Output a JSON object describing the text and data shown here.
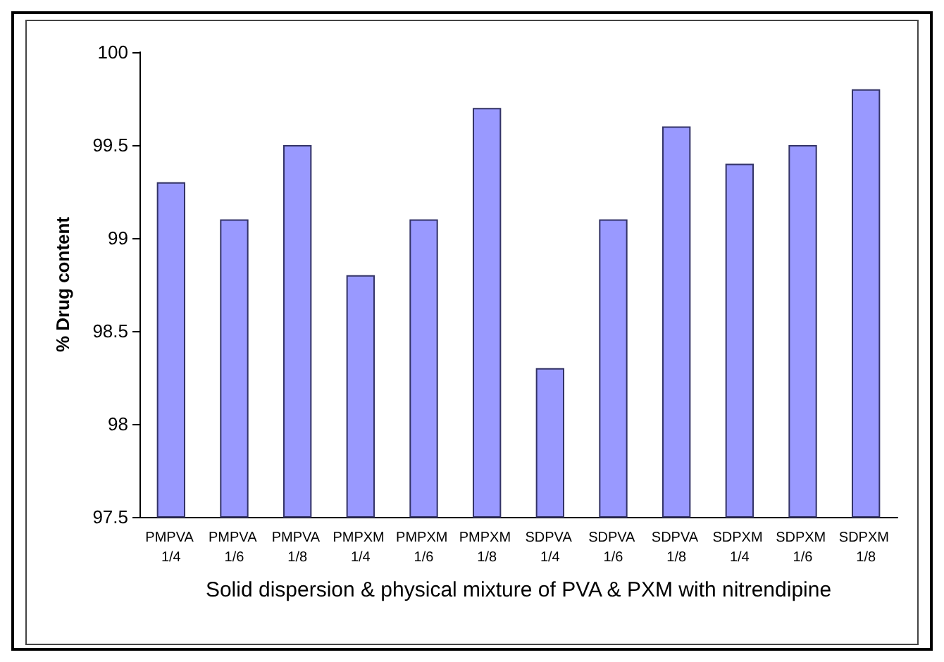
{
  "chart_data": {
    "type": "bar",
    "xlabel": "Solid dispersion & physical mixture of PVA & PXM with nitrendipine",
    "ylabel": "% Drug content",
    "categories": [
      "PMPVA 1/4",
      "PMPVA 1/6",
      "PMPVA 1/8",
      "PMPXM 1/4",
      "PMPXM 1/6",
      "PMPXM 1/8",
      "SDPVA 1/4",
      "SDPVA 1/6",
      "SDPVA 1/8",
      "SDPXM 1/4",
      "SDPXM 1/6",
      "SDPXM 1/8"
    ],
    "values": [
      99.3,
      99.1,
      99.5,
      98.8,
      99.1,
      99.7,
      98.3,
      99.1,
      99.6,
      99.4,
      99.5,
      99.8
    ],
    "color": "#9999ff",
    "ylim": [
      97.5,
      100
    ],
    "yticks": [
      97.5,
      98,
      98.5,
      99,
      99.5,
      100
    ],
    "grid": false
  }
}
